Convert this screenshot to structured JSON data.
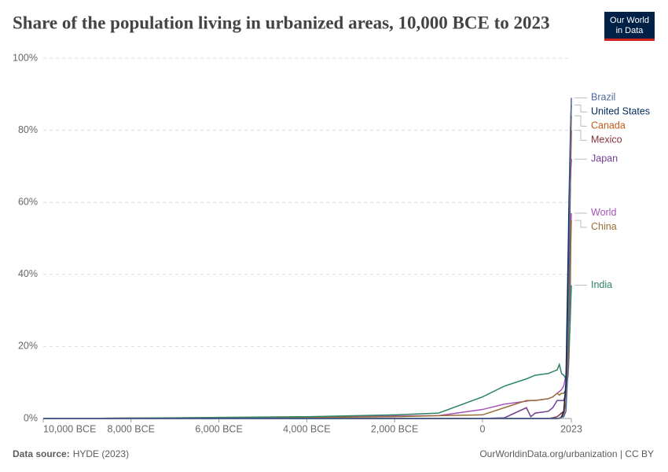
{
  "chart_data": {
    "type": "line",
    "title": "Share of the population living in urbanized areas, 10,000 BCE to 2023",
    "source_label": "Data source:",
    "source": "HYDE (2023)",
    "footer_note": "OurWorldinData.org/urbanization | CC BY",
    "logo_lines": [
      "Our World",
      "in Data"
    ],
    "x": [
      -10000,
      -8000,
      -6000,
      -4000,
      -2000,
      -1000,
      0,
      500,
      1000,
      1100,
      1200,
      1500,
      1600,
      1700,
      1750,
      1800,
      1850,
      1900,
      1950,
      1970,
      1990,
      2000,
      2010,
      2023
    ],
    "xlim": [
      -10000,
      2023
    ],
    "xticks": [
      {
        "value": -10000,
        "label": "10,000 BCE"
      },
      {
        "value": -8000,
        "label": "8,000 BCE"
      },
      {
        "value": -6000,
        "label": "6,000 BCE"
      },
      {
        "value": -4000,
        "label": "4,000 BCE"
      },
      {
        "value": -2000,
        "label": "2,000 BCE"
      },
      0,
      2023
    ],
    "ylim": [
      0,
      100
    ],
    "yticks": [
      {
        "value": 0,
        "label": "0%"
      },
      {
        "value": 20,
        "label": "20%"
      },
      {
        "value": 40,
        "label": "40%"
      },
      {
        "value": 60,
        "label": "60%"
      },
      {
        "value": 80,
        "label": "80%"
      },
      {
        "value": 100,
        "label": "100%"
      }
    ],
    "grid": true,
    "series": [
      {
        "name": "World",
        "color": "#a652ba",
        "values": [
          0,
          0.1,
          0.2,
          0.4,
          0.7,
          0.8,
          2.5,
          4,
          4.8,
          5,
          5,
          5.5,
          6,
          7,
          7.5,
          8,
          9,
          12,
          22,
          30,
          38,
          44,
          50,
          57
        ]
      },
      {
        "name": "China",
        "color": "#996d39",
        "values": [
          0,
          0.1,
          0.2,
          0.3,
          0.5,
          0.8,
          1,
          3,
          5,
          5,
          5,
          5.5,
          6,
          7,
          6.5,
          7,
          7,
          8,
          12,
          17,
          26,
          36,
          48,
          55
        ]
      },
      {
        "name": "India",
        "color": "#2c8465",
        "values": [
          0,
          0.1,
          0.3,
          0.5,
          1,
          1.5,
          6,
          9,
          11,
          11.5,
          12,
          12.5,
          13,
          13.5,
          15,
          12.5,
          12,
          11,
          17,
          20,
          25,
          28,
          32,
          37
        ]
      },
      {
        "name": "Japan",
        "color": "#6d3e91",
        "values": [
          0,
          0,
          0,
          0,
          0,
          0,
          0,
          0.2,
          3,
          0.5,
          1.5,
          2,
          3,
          5,
          5,
          5,
          5,
          7,
          30,
          50,
          60,
          65,
          69,
          72
        ]
      },
      {
        "name": "Mexico",
        "color": "#883039",
        "values": [
          0,
          0,
          0,
          0,
          0,
          0,
          0,
          0,
          0,
          0,
          0,
          0,
          0.2,
          0.5,
          1,
          1.5,
          2,
          4,
          20,
          38,
          55,
          65,
          72,
          80
        ]
      },
      {
        "name": "Canada",
        "color": "#c05917",
        "values": [
          0,
          0,
          0,
          0,
          0,
          0,
          0,
          0,
          0,
          0,
          0,
          0,
          0,
          0,
          0,
          0.5,
          1,
          5,
          30,
          50,
          62,
          70,
          77,
          84
        ]
      },
      {
        "name": "United States",
        "color": "#00295b",
        "values": [
          0,
          0,
          0,
          0,
          0,
          0,
          0,
          0,
          0,
          0,
          0,
          0,
          0,
          0,
          0.1,
          0.5,
          2,
          10,
          45,
          60,
          72,
          78,
          83,
          87
        ]
      },
      {
        "name": "Brazil",
        "color": "#4c6a9c",
        "values": [
          0,
          0,
          0,
          0,
          0,
          0,
          0,
          0,
          0,
          0,
          0,
          0,
          0,
          0,
          0.1,
          0.3,
          0.5,
          2,
          15,
          40,
          65,
          75,
          82,
          89
        ]
      }
    ]
  }
}
